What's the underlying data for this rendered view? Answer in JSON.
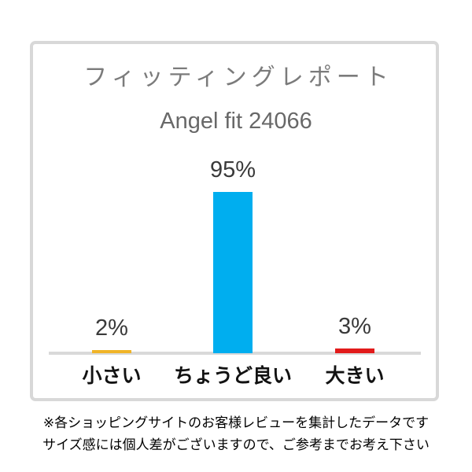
{
  "header": {
    "title": "フィッティングレポート",
    "subtitle": "Angel fit 24066"
  },
  "chart_data": {
    "type": "bar",
    "title": "フィッティングレポート",
    "subtitle": "Angel fit 24066",
    "categories": [
      "小さい",
      "ちょうど良い",
      "大きい"
    ],
    "values": [
      2,
      95,
      3
    ],
    "value_labels": [
      "2%",
      "95%",
      "3%"
    ],
    "bar_colors": [
      "#f0b428",
      "#00aeef",
      "#e21b1b"
    ],
    "xlabel": "",
    "ylabel": "",
    "ylim": [
      0,
      100
    ],
    "grid": false,
    "legend": false,
    "baseline_color": "#d9d9d9",
    "frame_color": "#d8d8d8",
    "value_label_color": "#3a3a3a",
    "title_color": "#7b7b7b"
  },
  "footer": {
    "line1": "※各ショッピングサイトのお客様レビューを集計したデータです",
    "line2": "サイズ感には個人差がございますので、ご参考までお考え下さい"
  }
}
